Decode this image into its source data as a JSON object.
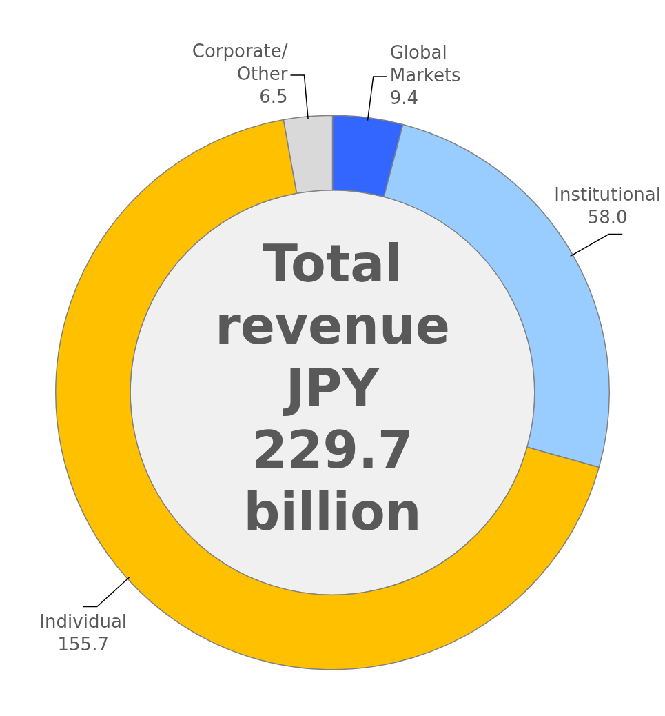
{
  "chart_data": {
    "type": "donut",
    "categories": [
      "Global Markets",
      "Institutional",
      "Individual",
      "Corporate/Other"
    ],
    "values": [
      9.4,
      58.0,
      155.7,
      6.5
    ],
    "colors": [
      "#3366ff",
      "#99ccff",
      "#ffc000",
      "#d9d9d9"
    ],
    "annotations": [
      "Total revenue JPY 229.7 billion"
    ],
    "value_labels": [
      "9.4",
      "58.0",
      "155.7",
      "6.5"
    ],
    "legend": false
  }
}
